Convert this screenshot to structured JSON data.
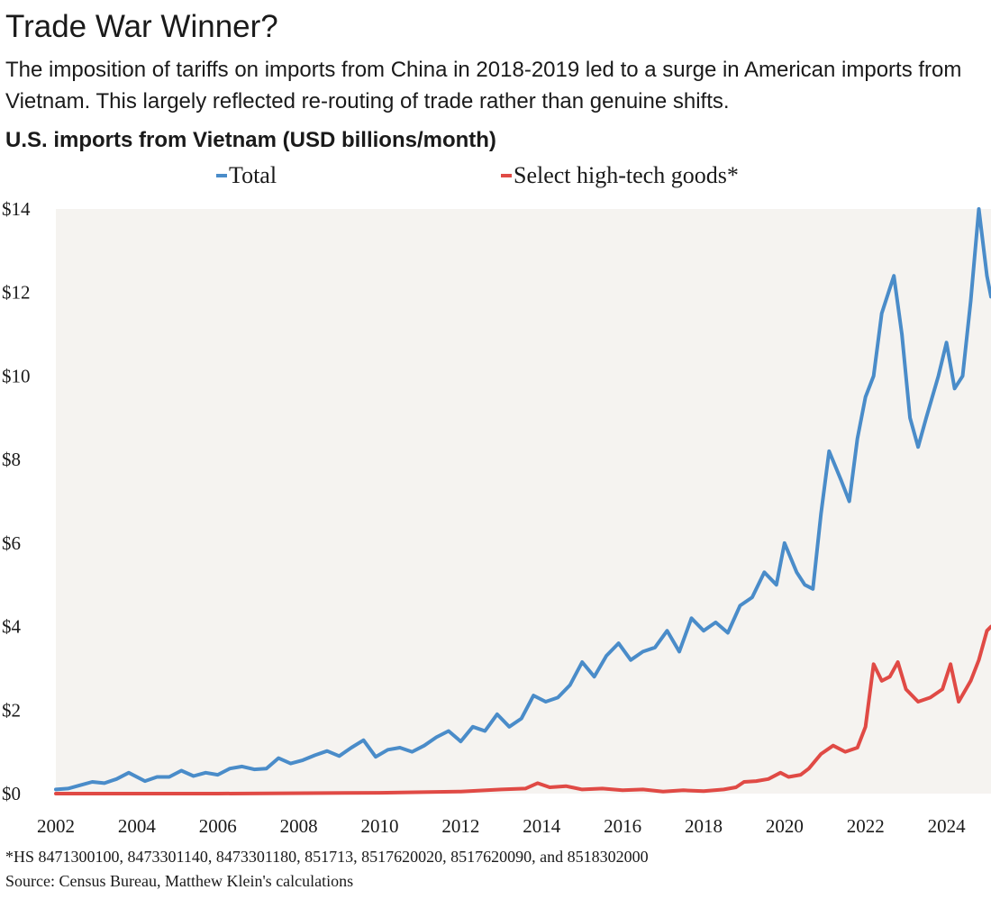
{
  "header": {
    "title": "Trade War Winner?",
    "subtitle": "The imposition of tariffs on imports from China in 2018-2019 led to a surge in American imports from Vietnam. This largely reflected re-routing of trade rather than genuine shifts.",
    "chart_title": "U.S. imports from Vietnam (USD billions/month)"
  },
  "footer": {
    "footnote": "*HS 8471300100, 8473301140, 8473301180, 851713, 8517620020, 8517620090, and 8518302000",
    "source": "Source: Census Bureau, Matthew Klein's calculations"
  },
  "colors": {
    "total": "#4a8cc9",
    "tech": "#e04a45",
    "plot_background": "#f5f3f0"
  },
  "chart_data": {
    "type": "line",
    "title": "U.S. imports from Vietnam (USD billions/month)",
    "xlabel": "",
    "ylabel": "",
    "xlim": [
      2002,
      2025.1
    ],
    "ylim": [
      0,
      14
    ],
    "x_ticks": [
      2002,
      2004,
      2006,
      2008,
      2010,
      2012,
      2014,
      2016,
      2018,
      2020,
      2022,
      2024
    ],
    "x_tick_labels": [
      "2002",
      "2004",
      "2006",
      "2008",
      "2010",
      "2012",
      "2014",
      "2016",
      "2018",
      "2020",
      "2022",
      "2024"
    ],
    "y_ticks": [
      0,
      2,
      4,
      6,
      8,
      10,
      12,
      14
    ],
    "y_tick_labels": [
      "$0",
      "$2",
      "$4",
      "$6",
      "$8",
      "$10",
      "$12",
      "$14"
    ],
    "grid": false,
    "legend_position": "top",
    "series": [
      {
        "name": "Total",
        "color": "#4a8cc9",
        "points": [
          [
            2002.0,
            0.1
          ],
          [
            2002.3,
            0.12
          ],
          [
            2002.6,
            0.2
          ],
          [
            2002.9,
            0.28
          ],
          [
            2003.2,
            0.25
          ],
          [
            2003.5,
            0.35
          ],
          [
            2003.8,
            0.5
          ],
          [
            2004.2,
            0.3
          ],
          [
            2004.5,
            0.4
          ],
          [
            2004.8,
            0.4
          ],
          [
            2005.1,
            0.55
          ],
          [
            2005.4,
            0.42
          ],
          [
            2005.7,
            0.5
          ],
          [
            2006.0,
            0.45
          ],
          [
            2006.3,
            0.6
          ],
          [
            2006.6,
            0.65
          ],
          [
            2006.9,
            0.58
          ],
          [
            2007.2,
            0.6
          ],
          [
            2007.5,
            0.85
          ],
          [
            2007.8,
            0.72
          ],
          [
            2008.1,
            0.8
          ],
          [
            2008.4,
            0.92
          ],
          [
            2008.7,
            1.02
          ],
          [
            2009.0,
            0.9
          ],
          [
            2009.3,
            1.1
          ],
          [
            2009.6,
            1.28
          ],
          [
            2009.9,
            0.88
          ],
          [
            2010.2,
            1.05
          ],
          [
            2010.5,
            1.1
          ],
          [
            2010.8,
            1.0
          ],
          [
            2011.1,
            1.15
          ],
          [
            2011.4,
            1.35
          ],
          [
            2011.7,
            1.5
          ],
          [
            2012.0,
            1.25
          ],
          [
            2012.3,
            1.6
          ],
          [
            2012.6,
            1.5
          ],
          [
            2012.9,
            1.9
          ],
          [
            2013.2,
            1.6
          ],
          [
            2013.5,
            1.8
          ],
          [
            2013.8,
            2.35
          ],
          [
            2014.1,
            2.2
          ],
          [
            2014.4,
            2.3
          ],
          [
            2014.7,
            2.6
          ],
          [
            2015.0,
            3.15
          ],
          [
            2015.3,
            2.8
          ],
          [
            2015.6,
            3.3
          ],
          [
            2015.9,
            3.6
          ],
          [
            2016.2,
            3.2
          ],
          [
            2016.5,
            3.4
          ],
          [
            2016.8,
            3.5
          ],
          [
            2017.1,
            3.9
          ],
          [
            2017.4,
            3.4
          ],
          [
            2017.7,
            4.2
          ],
          [
            2018.0,
            3.9
          ],
          [
            2018.3,
            4.1
          ],
          [
            2018.6,
            3.85
          ],
          [
            2018.9,
            4.5
          ],
          [
            2019.2,
            4.7
          ],
          [
            2019.5,
            5.3
          ],
          [
            2019.8,
            5.0
          ],
          [
            2020.0,
            6.0
          ],
          [
            2020.3,
            5.3
          ],
          [
            2020.5,
            5.0
          ],
          [
            2020.7,
            4.9
          ],
          [
            2020.9,
            6.7
          ],
          [
            2021.1,
            8.2
          ],
          [
            2021.4,
            7.5
          ],
          [
            2021.6,
            7.0
          ],
          [
            2021.8,
            8.5
          ],
          [
            2022.0,
            9.5
          ],
          [
            2022.2,
            10.0
          ],
          [
            2022.4,
            11.5
          ],
          [
            2022.7,
            12.4
          ],
          [
            2022.9,
            11.0
          ],
          [
            2023.1,
            9.0
          ],
          [
            2023.3,
            8.3
          ],
          [
            2023.5,
            9.0
          ],
          [
            2023.8,
            10.0
          ],
          [
            2024.0,
            10.8
          ],
          [
            2024.2,
            9.7
          ],
          [
            2024.4,
            10.0
          ],
          [
            2024.6,
            11.8
          ],
          [
            2024.8,
            14.0
          ],
          [
            2025.0,
            12.4
          ],
          [
            2025.1,
            11.9
          ]
        ]
      },
      {
        "name": "Select high-tech goods*",
        "color": "#e04a45",
        "points": [
          [
            2002.0,
            0.0
          ],
          [
            2006.0,
            0.0
          ],
          [
            2010.0,
            0.02
          ],
          [
            2012.0,
            0.05
          ],
          [
            2013.0,
            0.1
          ],
          [
            2013.6,
            0.12
          ],
          [
            2013.9,
            0.25
          ],
          [
            2014.2,
            0.15
          ],
          [
            2014.6,
            0.18
          ],
          [
            2015.0,
            0.1
          ],
          [
            2015.5,
            0.12
          ],
          [
            2016.0,
            0.08
          ],
          [
            2016.5,
            0.1
          ],
          [
            2017.0,
            0.05
          ],
          [
            2017.5,
            0.08
          ],
          [
            2018.0,
            0.06
          ],
          [
            2018.5,
            0.1
          ],
          [
            2018.8,
            0.15
          ],
          [
            2019.0,
            0.28
          ],
          [
            2019.3,
            0.3
          ],
          [
            2019.6,
            0.35
          ],
          [
            2019.9,
            0.5
          ],
          [
            2020.1,
            0.4
          ],
          [
            2020.4,
            0.45
          ],
          [
            2020.6,
            0.6
          ],
          [
            2020.9,
            0.95
          ],
          [
            2021.2,
            1.15
          ],
          [
            2021.5,
            1.0
          ],
          [
            2021.8,
            1.1
          ],
          [
            2022.0,
            1.6
          ],
          [
            2022.2,
            3.1
          ],
          [
            2022.4,
            2.7
          ],
          [
            2022.6,
            2.8
          ],
          [
            2022.8,
            3.15
          ],
          [
            2023.0,
            2.5
          ],
          [
            2023.3,
            2.2
          ],
          [
            2023.6,
            2.3
          ],
          [
            2023.9,
            2.5
          ],
          [
            2024.1,
            3.1
          ],
          [
            2024.3,
            2.2
          ],
          [
            2024.6,
            2.7
          ],
          [
            2024.8,
            3.2
          ],
          [
            2025.0,
            3.9
          ],
          [
            2025.1,
            4.0
          ]
        ]
      }
    ]
  }
}
